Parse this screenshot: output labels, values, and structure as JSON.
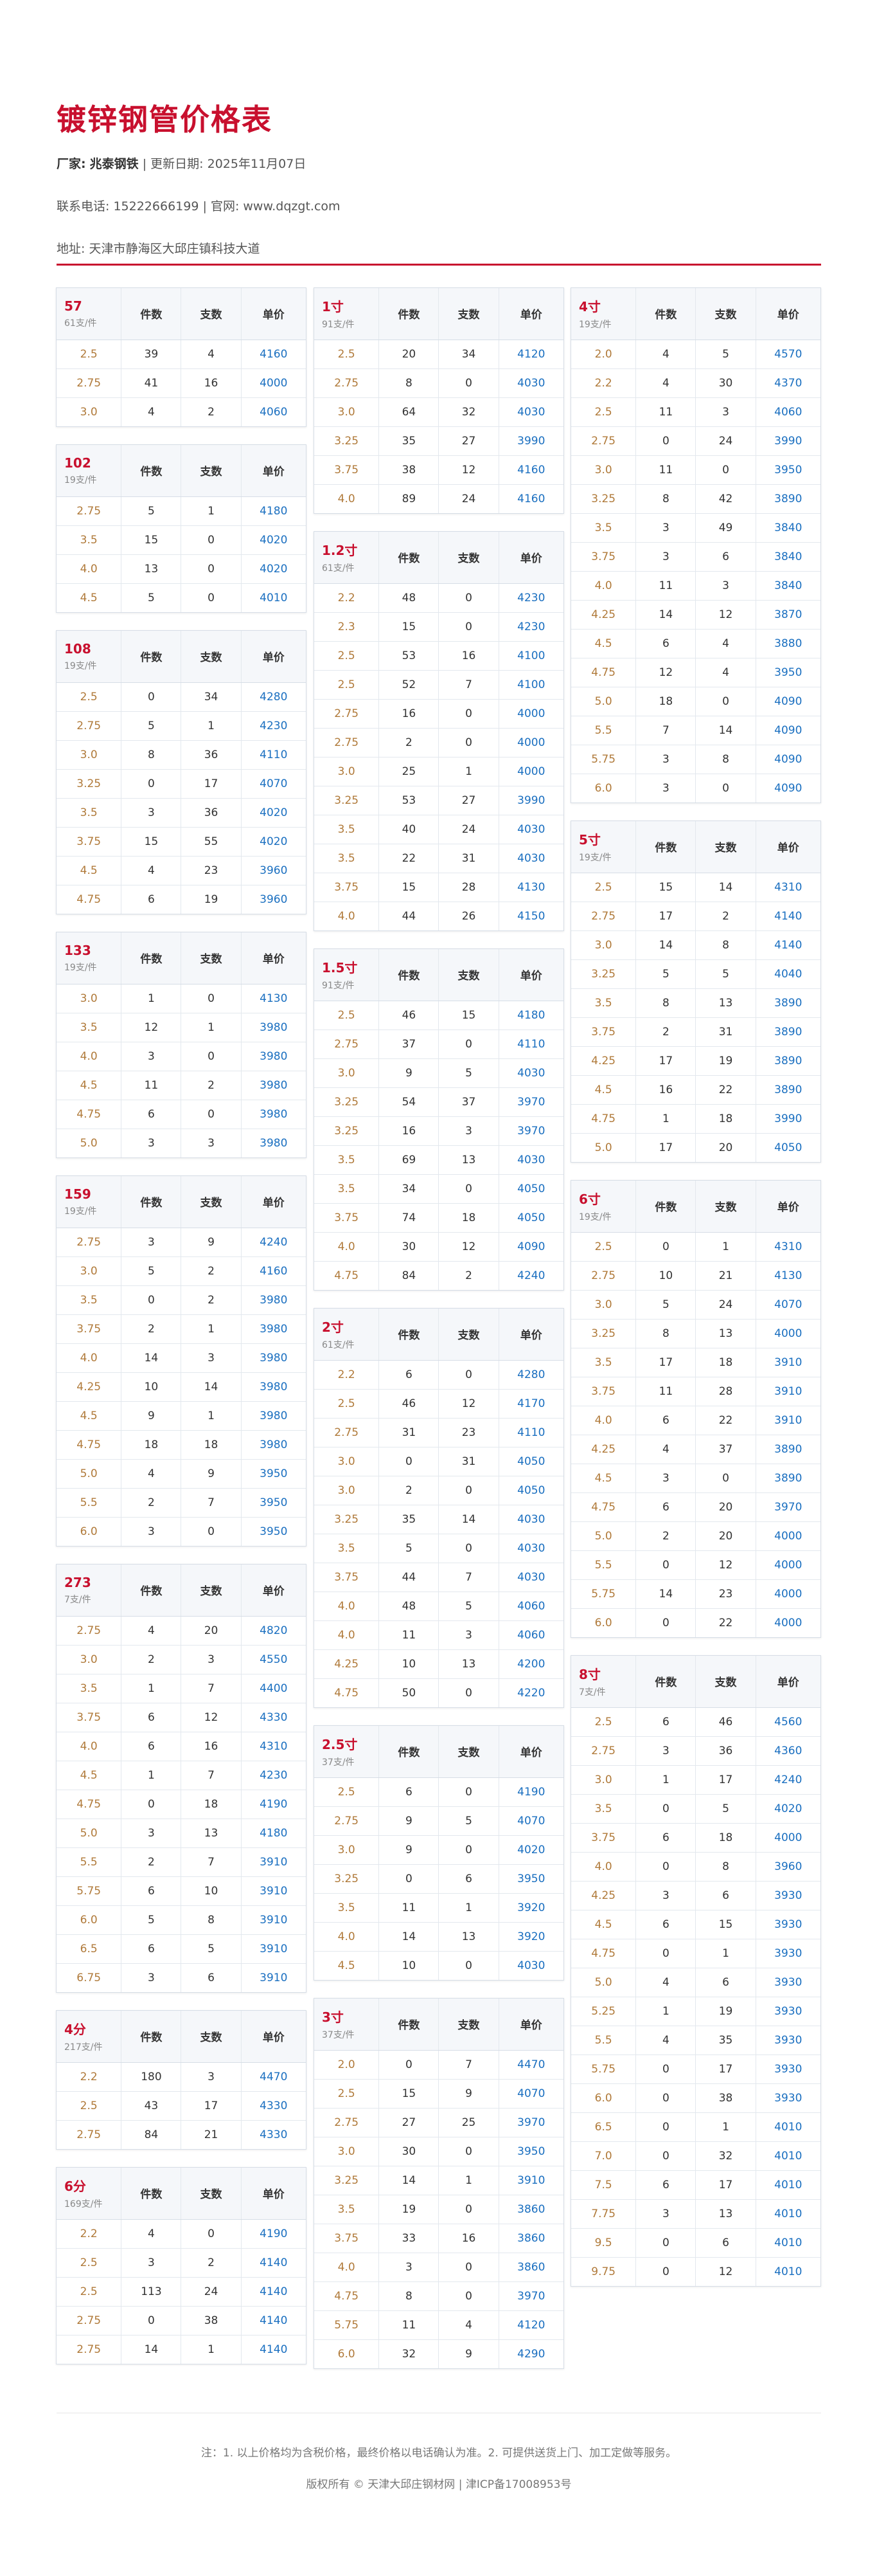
{
  "title": "镀锌钢管价格表",
  "info": {
    "factory_label": "厂家:",
    "factory": "兆泰钢铁",
    "sep": " | ",
    "update_label": "更新日期:",
    "update_date": "2025年11月07日",
    "phone_label": "联系电话:",
    "phone": "15222666199",
    "site_label": "官网:",
    "site": "www.dqzgt.com",
    "addr_label": "地址:",
    "addr": "天津市静海区大邱庄镇科技大道"
  },
  "headers": {
    "qty": "件数",
    "count": "支数",
    "price": "单价"
  },
  "columns": [
    [
      {
        "spec": "57",
        "per": "61支/件",
        "rows": [
          [
            "2.5",
            "39",
            "4",
            "4160"
          ],
          [
            "2.75",
            "41",
            "16",
            "4000"
          ],
          [
            "3.0",
            "4",
            "2",
            "4060"
          ]
        ]
      },
      {
        "spec": "102",
        "per": "19支/件",
        "rows": [
          [
            "2.75",
            "5",
            "1",
            "4180"
          ],
          [
            "3.5",
            "15",
            "0",
            "4020"
          ],
          [
            "4.0",
            "13",
            "0",
            "4020"
          ],
          [
            "4.5",
            "5",
            "0",
            "4010"
          ]
        ]
      },
      {
        "spec": "108",
        "per": "19支/件",
        "rows": [
          [
            "2.5",
            "0",
            "34",
            "4280"
          ],
          [
            "2.75",
            "5",
            "1",
            "4230"
          ],
          [
            "3.0",
            "8",
            "36",
            "4110"
          ],
          [
            "3.25",
            "0",
            "17",
            "4070"
          ],
          [
            "3.5",
            "3",
            "36",
            "4020"
          ],
          [
            "3.75",
            "15",
            "55",
            "4020"
          ],
          [
            "4.5",
            "4",
            "23",
            "3960"
          ],
          [
            "4.75",
            "6",
            "19",
            "3960"
          ]
        ]
      },
      {
        "spec": "133",
        "per": "19支/件",
        "rows": [
          [
            "3.0",
            "1",
            "0",
            "4130"
          ],
          [
            "3.5",
            "12",
            "1",
            "3980"
          ],
          [
            "4.0",
            "3",
            "0",
            "3980"
          ],
          [
            "4.5",
            "11",
            "2",
            "3980"
          ],
          [
            "4.75",
            "6",
            "0",
            "3980"
          ],
          [
            "5.0",
            "3",
            "3",
            "3980"
          ]
        ]
      },
      {
        "spec": "159",
        "per": "19支/件",
        "rows": [
          [
            "2.75",
            "3",
            "9",
            "4240"
          ],
          [
            "3.0",
            "5",
            "2",
            "4160"
          ],
          [
            "3.5",
            "0",
            "2",
            "3980"
          ],
          [
            "3.75",
            "2",
            "1",
            "3980"
          ],
          [
            "4.0",
            "14",
            "3",
            "3980"
          ],
          [
            "4.25",
            "10",
            "14",
            "3980"
          ],
          [
            "4.5",
            "9",
            "1",
            "3980"
          ],
          [
            "4.75",
            "18",
            "18",
            "3980"
          ],
          [
            "5.0",
            "4",
            "9",
            "3950"
          ],
          [
            "5.5",
            "2",
            "7",
            "3950"
          ],
          [
            "6.0",
            "3",
            "0",
            "3950"
          ]
        ]
      },
      {
        "spec": "273",
        "per": "7支/件",
        "rows": [
          [
            "2.75",
            "4",
            "20",
            "4820"
          ],
          [
            "3.0",
            "2",
            "3",
            "4550"
          ],
          [
            "3.5",
            "1",
            "7",
            "4400"
          ],
          [
            "3.75",
            "6",
            "12",
            "4330"
          ],
          [
            "4.0",
            "6",
            "16",
            "4310"
          ],
          [
            "4.5",
            "1",
            "7",
            "4230"
          ],
          [
            "4.75",
            "0",
            "18",
            "4190"
          ],
          [
            "5.0",
            "3",
            "13",
            "4180"
          ],
          [
            "5.5",
            "2",
            "7",
            "3910"
          ],
          [
            "5.75",
            "6",
            "10",
            "3910"
          ],
          [
            "6.0",
            "5",
            "8",
            "3910"
          ],
          [
            "6.5",
            "6",
            "5",
            "3910"
          ],
          [
            "6.75",
            "3",
            "6",
            "3910"
          ]
        ]
      },
      {
        "spec": "4分",
        "per": "217支/件",
        "rows": [
          [
            "2.2",
            "180",
            "3",
            "4470"
          ],
          [
            "2.5",
            "43",
            "17",
            "4330"
          ],
          [
            "2.75",
            "84",
            "21",
            "4330"
          ]
        ]
      },
      {
        "spec": "6分",
        "per": "169支/件",
        "rows": [
          [
            "2.2",
            "4",
            "0",
            "4190"
          ],
          [
            "2.5",
            "3",
            "2",
            "4140"
          ],
          [
            "2.5",
            "113",
            "24",
            "4140"
          ],
          [
            "2.75",
            "0",
            "38",
            "4140"
          ],
          [
            "2.75",
            "14",
            "1",
            "4140"
          ]
        ]
      }
    ],
    [
      {
        "spec": "1寸",
        "per": "91支/件",
        "rows": [
          [
            "2.5",
            "20",
            "34",
            "4120"
          ],
          [
            "2.75",
            "8",
            "0",
            "4030"
          ],
          [
            "3.0",
            "64",
            "32",
            "4030"
          ],
          [
            "3.25",
            "35",
            "27",
            "3990"
          ],
          [
            "3.75",
            "38",
            "12",
            "4160"
          ],
          [
            "4.0",
            "89",
            "24",
            "4160"
          ]
        ]
      },
      {
        "spec": "1.2寸",
        "per": "61支/件",
        "rows": [
          [
            "2.2",
            "48",
            "0",
            "4230"
          ],
          [
            "2.3",
            "15",
            "0",
            "4230"
          ],
          [
            "2.5",
            "53",
            "16",
            "4100"
          ],
          [
            "2.5",
            "52",
            "7",
            "4100"
          ],
          [
            "2.75",
            "16",
            "0",
            "4000"
          ],
          [
            "2.75",
            "2",
            "0",
            "4000"
          ],
          [
            "3.0",
            "25",
            "1",
            "4000"
          ],
          [
            "3.25",
            "53",
            "27",
            "3990"
          ],
          [
            "3.5",
            "40",
            "24",
            "4030"
          ],
          [
            "3.5",
            "22",
            "31",
            "4030"
          ],
          [
            "3.75",
            "15",
            "28",
            "4130"
          ],
          [
            "4.0",
            "44",
            "26",
            "4150"
          ]
        ]
      },
      {
        "spec": "1.5寸",
        "per": "91支/件",
        "rows": [
          [
            "2.5",
            "46",
            "15",
            "4180"
          ],
          [
            "2.75",
            "37",
            "0",
            "4110"
          ],
          [
            "3.0",
            "9",
            "5",
            "4030"
          ],
          [
            "3.25",
            "54",
            "37",
            "3970"
          ],
          [
            "3.25",
            "16",
            "3",
            "3970"
          ],
          [
            "3.5",
            "69",
            "13",
            "4030"
          ],
          [
            "3.5",
            "34",
            "0",
            "4050"
          ],
          [
            "3.75",
            "74",
            "18",
            "4050"
          ],
          [
            "4.0",
            "30",
            "12",
            "4090"
          ],
          [
            "4.75",
            "84",
            "2",
            "4240"
          ]
        ]
      },
      {
        "spec": "2寸",
        "per": "61支/件",
        "rows": [
          [
            "2.2",
            "6",
            "0",
            "4280"
          ],
          [
            "2.5",
            "46",
            "12",
            "4170"
          ],
          [
            "2.75",
            "31",
            "23",
            "4110"
          ],
          [
            "3.0",
            "0",
            "31",
            "4050"
          ],
          [
            "3.0",
            "2",
            "0",
            "4050"
          ],
          [
            "3.25",
            "35",
            "14",
            "4030"
          ],
          [
            "3.5",
            "5",
            "0",
            "4030"
          ],
          [
            "3.75",
            "44",
            "7",
            "4030"
          ],
          [
            "4.0",
            "48",
            "5",
            "4060"
          ],
          [
            "4.0",
            "11",
            "3",
            "4060"
          ],
          [
            "4.25",
            "10",
            "13",
            "4200"
          ],
          [
            "4.75",
            "50",
            "0",
            "4220"
          ]
        ]
      },
      {
        "spec": "2.5寸",
        "per": "37支/件",
        "rows": [
          [
            "2.5",
            "6",
            "0",
            "4190"
          ],
          [
            "2.75",
            "9",
            "5",
            "4070"
          ],
          [
            "3.0",
            "9",
            "0",
            "4020"
          ],
          [
            "3.25",
            "0",
            "6",
            "3950"
          ],
          [
            "3.5",
            "11",
            "1",
            "3920"
          ],
          [
            "4.0",
            "14",
            "13",
            "3920"
          ],
          [
            "4.5",
            "10",
            "0",
            "4030"
          ]
        ]
      },
      {
        "spec": "3寸",
        "per": "37支/件",
        "rows": [
          [
            "2.0",
            "0",
            "7",
            "4470"
          ],
          [
            "2.5",
            "15",
            "9",
            "4070"
          ],
          [
            "2.75",
            "27",
            "25",
            "3970"
          ],
          [
            "3.0",
            "30",
            "0",
            "3950"
          ],
          [
            "3.25",
            "14",
            "1",
            "3910"
          ],
          [
            "3.5",
            "19",
            "0",
            "3860"
          ],
          [
            "3.75",
            "33",
            "16",
            "3860"
          ],
          [
            "4.0",
            "3",
            "0",
            "3860"
          ],
          [
            "4.75",
            "8",
            "0",
            "3970"
          ],
          [
            "5.75",
            "11",
            "4",
            "4120"
          ],
          [
            "6.0",
            "32",
            "9",
            "4290"
          ]
        ]
      }
    ],
    [
      {
        "spec": "4寸",
        "per": "19支/件",
        "rows": [
          [
            "2.0",
            "4",
            "5",
            "4570"
          ],
          [
            "2.2",
            "4",
            "30",
            "4370"
          ],
          [
            "2.5",
            "11",
            "3",
            "4060"
          ],
          [
            "2.75",
            "0",
            "24",
            "3990"
          ],
          [
            "3.0",
            "11",
            "0",
            "3950"
          ],
          [
            "3.25",
            "8",
            "42",
            "3890"
          ],
          [
            "3.5",
            "3",
            "49",
            "3840"
          ],
          [
            "3.75",
            "3",
            "6",
            "3840"
          ],
          [
            "4.0",
            "11",
            "3",
            "3840"
          ],
          [
            "4.25",
            "14",
            "12",
            "3870"
          ],
          [
            "4.5",
            "6",
            "4",
            "3880"
          ],
          [
            "4.75",
            "12",
            "4",
            "3950"
          ],
          [
            "5.0",
            "18",
            "0",
            "4090"
          ],
          [
            "5.5",
            "7",
            "14",
            "4090"
          ],
          [
            "5.75",
            "3",
            "8",
            "4090"
          ],
          [
            "6.0",
            "3",
            "0",
            "4090"
          ]
        ]
      },
      {
        "spec": "5寸",
        "per": "19支/件",
        "rows": [
          [
            "2.5",
            "15",
            "14",
            "4310"
          ],
          [
            "2.75",
            "17",
            "2",
            "4140"
          ],
          [
            "3.0",
            "14",
            "8",
            "4140"
          ],
          [
            "3.25",
            "5",
            "5",
            "4040"
          ],
          [
            "3.5",
            "8",
            "13",
            "3890"
          ],
          [
            "3.75",
            "2",
            "31",
            "3890"
          ],
          [
            "4.25",
            "17",
            "19",
            "3890"
          ],
          [
            "4.5",
            "16",
            "22",
            "3890"
          ],
          [
            "4.75",
            "1",
            "18",
            "3990"
          ],
          [
            "5.0",
            "17",
            "20",
            "4050"
          ]
        ]
      },
      {
        "spec": "6寸",
        "per": "19支/件",
        "rows": [
          [
            "2.5",
            "0",
            "1",
            "4310"
          ],
          [
            "2.75",
            "10",
            "21",
            "4130"
          ],
          [
            "3.0",
            "5",
            "24",
            "4070"
          ],
          [
            "3.25",
            "8",
            "13",
            "4000"
          ],
          [
            "3.5",
            "17",
            "18",
            "3910"
          ],
          [
            "3.75",
            "11",
            "28",
            "3910"
          ],
          [
            "4.0",
            "6",
            "22",
            "3910"
          ],
          [
            "4.25",
            "4",
            "37",
            "3890"
          ],
          [
            "4.5",
            "3",
            "0",
            "3890"
          ],
          [
            "4.75",
            "6",
            "20",
            "3970"
          ],
          [
            "5.0",
            "2",
            "20",
            "4000"
          ],
          [
            "5.5",
            "0",
            "12",
            "4000"
          ],
          [
            "5.75",
            "14",
            "23",
            "4000"
          ],
          [
            "6.0",
            "0",
            "22",
            "4000"
          ]
        ]
      },
      {
        "spec": "8寸",
        "per": "7支/件",
        "rows": [
          [
            "2.5",
            "6",
            "46",
            "4560"
          ],
          [
            "2.75",
            "3",
            "36",
            "4360"
          ],
          [
            "3.0",
            "1",
            "17",
            "4240"
          ],
          [
            "3.5",
            "0",
            "5",
            "4020"
          ],
          [
            "3.75",
            "6",
            "18",
            "4000"
          ],
          [
            "4.0",
            "0",
            "8",
            "3960"
          ],
          [
            "4.25",
            "3",
            "6",
            "3930"
          ],
          [
            "4.5",
            "6",
            "15",
            "3930"
          ],
          [
            "4.75",
            "0",
            "1",
            "3930"
          ],
          [
            "5.0",
            "4",
            "6",
            "3930"
          ],
          [
            "5.25",
            "1",
            "19",
            "3930"
          ],
          [
            "5.5",
            "4",
            "35",
            "3930"
          ],
          [
            "5.75",
            "0",
            "17",
            "3930"
          ],
          [
            "6.0",
            "0",
            "38",
            "3930"
          ],
          [
            "6.5",
            "0",
            "1",
            "4010"
          ],
          [
            "7.0",
            "0",
            "32",
            "4010"
          ],
          [
            "7.5",
            "6",
            "17",
            "4010"
          ],
          [
            "7.75",
            "3",
            "13",
            "4010"
          ],
          [
            "9.5",
            "0",
            "6",
            "4010"
          ],
          [
            "9.75",
            "0",
            "12",
            "4010"
          ]
        ]
      }
    ]
  ],
  "footer": {
    "note": "注：1. 以上价格均为含税价格，最终价格以电话确认为准。2. 可提供送货上门、加工定做等服务。",
    "copyright": "版权所有 © 天津大邱庄钢材网 | 津ICP备17008953号"
  }
}
